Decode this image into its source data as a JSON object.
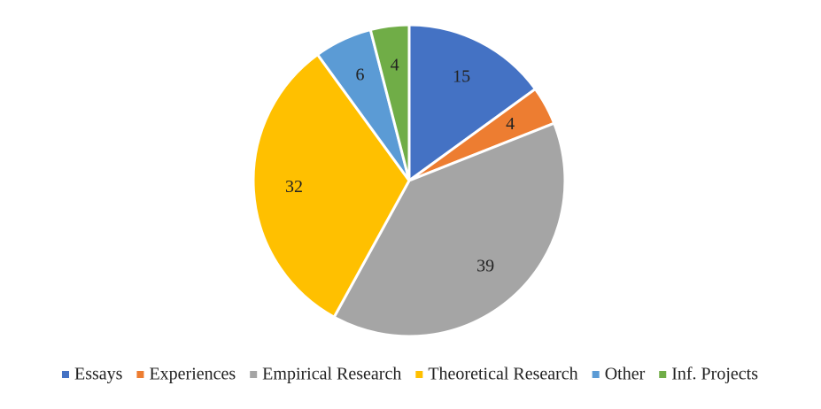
{
  "chart_data": {
    "type": "pie",
    "categories": [
      "Essays",
      "Experiences",
      "Empirical Research",
      "Theoretical Research",
      "Other",
      "Inf. Projects"
    ],
    "values": [
      15,
      4,
      39,
      32,
      6,
      4
    ],
    "colors": [
      "#4472c4",
      "#ed7d31",
      "#a5a5a5",
      "#ffc000",
      "#5b9bd5",
      "#70ad47"
    ],
    "legend": "bottom"
  }
}
